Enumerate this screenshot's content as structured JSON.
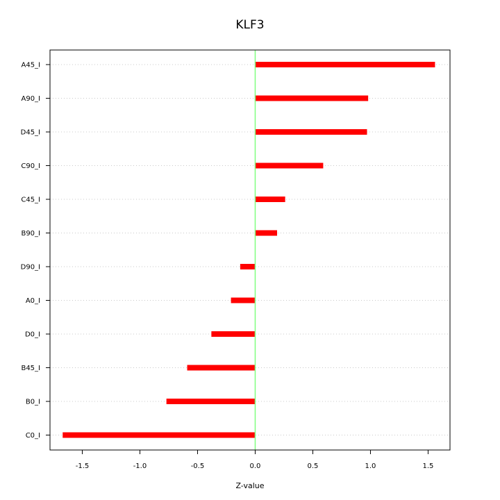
{
  "chart_data": {
    "type": "bar",
    "orientation": "horizontal",
    "title": "KLF3",
    "xlabel": "Z-value",
    "ylabel": "",
    "xlim": [
      -1.78,
      1.69
    ],
    "xticks": [
      -1.5,
      -1.0,
      -0.5,
      0.0,
      0.5,
      1.0,
      1.5
    ],
    "xtick_labels": [
      "-1.5",
      "-1.0",
      "-0.5",
      "0.0",
      "0.5",
      "1.0",
      "1.5"
    ],
    "grid": "horizontal dotted",
    "categories": [
      "A45_I",
      "A90_I",
      "D45_I",
      "C90_I",
      "C45_I",
      "B90_I",
      "D90_I",
      "A0_I",
      "D0_I",
      "B45_I",
      "B0_I",
      "C0_I"
    ],
    "values": [
      1.56,
      0.98,
      0.97,
      0.59,
      0.26,
      0.19,
      -0.13,
      -0.21,
      -0.38,
      -0.59,
      -0.77,
      -1.67
    ],
    "bar_color": "#ff0000",
    "zero_line_color": "#7fff7f"
  }
}
